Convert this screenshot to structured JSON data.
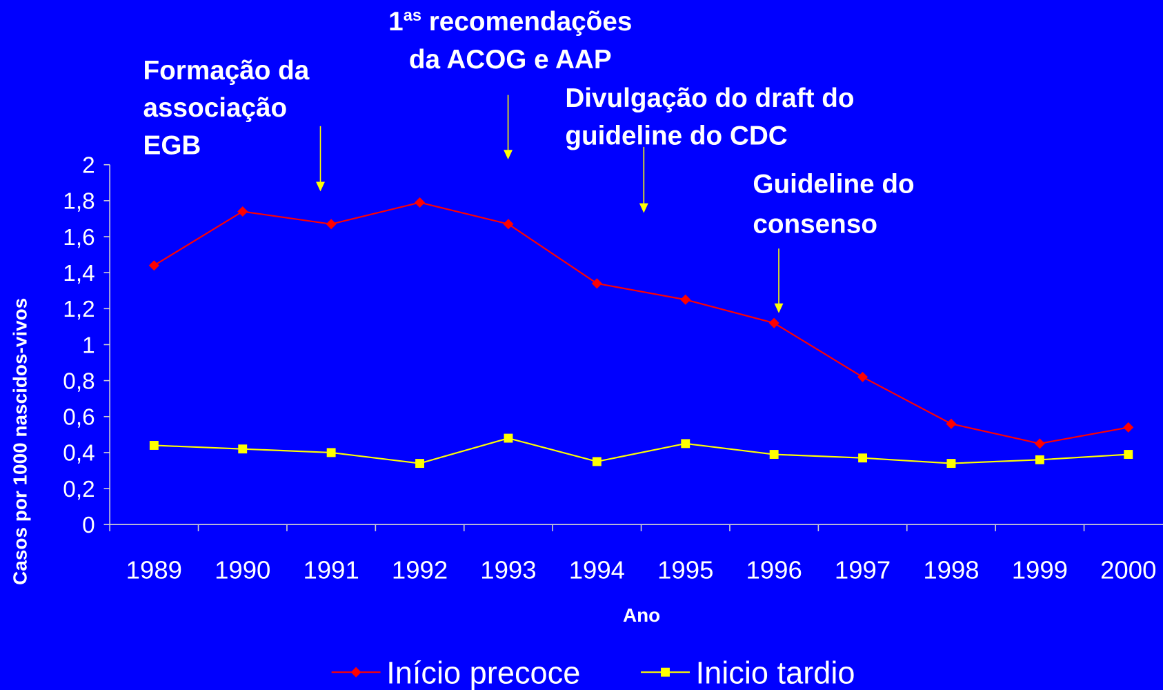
{
  "chart_data": {
    "type": "line",
    "categories": [
      "1989",
      "1990",
      "1991",
      "1992",
      "1993",
      "1994",
      "1995",
      "1996",
      "1997",
      "1998",
      "1999",
      "2000"
    ],
    "series": [
      {
        "name": "Início precoce",
        "color": "#ff0000",
        "values": [
          1.44,
          1.74,
          1.67,
          1.79,
          1.67,
          1.34,
          1.25,
          1.12,
          0.82,
          0.56,
          0.45,
          0.54
        ]
      },
      {
        "name": "Inicio tardio",
        "color": "#ffff00",
        "values": [
          0.44,
          0.42,
          0.4,
          0.34,
          0.48,
          0.35,
          0.45,
          0.39,
          0.37,
          0.34,
          0.36,
          0.39
        ]
      }
    ],
    "ylim": [
      0,
      2
    ],
    "yticks": [
      0,
      {
        "value": 0.2,
        "label": "0,2"
      },
      {
        "value": 0.4,
        "label": "0,4"
      },
      {
        "value": 0.6,
        "label": "0,6"
      },
      {
        "value": 0.8,
        "label": "0,8"
      },
      1,
      {
        "value": 1.2,
        "label": "1,2"
      },
      {
        "value": 1.4,
        "label": "1,4"
      },
      {
        "value": 1.6,
        "label": "1,6"
      },
      {
        "value": 1.8,
        "label": "1,8"
      },
      2
    ],
    "xlabel": "Ano",
    "ylabel": "Casos por 1000 nascidos-vivos",
    "legend": "bottom",
    "annotations": [
      {
        "lines": [
          "Formação da",
          "associação",
          "EGB"
        ]
      },
      {
        "prefix": "1",
        "sup": "as",
        "lines": [
          "recomendações",
          "da ACOG e AAP"
        ]
      },
      {
        "lines": [
          "Divulgação do draft do",
          "guideline do CDC"
        ]
      },
      {
        "lines": [
          "Guideline do",
          "consenso"
        ]
      }
    ]
  }
}
